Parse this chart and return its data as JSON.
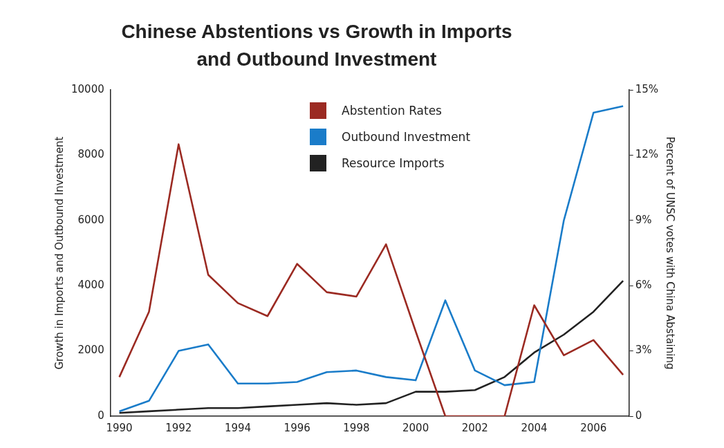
{
  "chart_data": {
    "type": "line",
    "title": "Chinese Abstentions vs Growth in Imports and Outbound Investment",
    "ylabel": "Growth in Imports and Outbound Investment",
    "y2label": "Percent of UNSC votes with China Abstaining",
    "x": [
      1990,
      1991,
      1992,
      1993,
      1994,
      1995,
      1996,
      1997,
      1998,
      1999,
      2000,
      2001,
      2002,
      2003,
      2004,
      2005,
      2006,
      2007
    ],
    "series": [
      {
        "name": "Abstention Rates",
        "color": "#9b2a22",
        "axis": "y2",
        "values": [
          1.8,
          4.8,
          12.5,
          6.5,
          5.2,
          4.6,
          7.0,
          5.7,
          5.5,
          7.9,
          3.9,
          0,
          0,
          0,
          5.1,
          2.8,
          3.5,
          1.9
        ]
      },
      {
        "name": "Outbound Investment",
        "color": "#1a7cc9",
        "values": [
          150,
          470,
          2000,
          2200,
          1000,
          1000,
          1050,
          1350,
          1400,
          1200,
          1100,
          3550,
          1400,
          950,
          1050,
          6000,
          9300,
          9500
        ]
      },
      {
        "name": "Resource Imports",
        "color": "#222222",
        "values": [
          100,
          150,
          200,
          250,
          250,
          300,
          350,
          400,
          350,
          400,
          750,
          750,
          800,
          1200,
          1950,
          2500,
          3200,
          4150
        ]
      }
    ],
    "xlim": [
      1989.7,
      2007.2
    ],
    "xticks": [
      1990,
      1992,
      1994,
      1996,
      1998,
      2000,
      2002,
      2004,
      2006
    ],
    "ylim": [
      0,
      10000
    ],
    "yticks": [
      0,
      2000,
      4000,
      6000,
      8000,
      10000
    ],
    "y2lim": [
      0,
      15
    ],
    "y2ticks": [
      0,
      {
        "value": 3,
        "label": "3%"
      },
      {
        "value": 6,
        "label": "6%"
      },
      {
        "value": 9,
        "label": "9%"
      },
      {
        "value": 12,
        "label": "12%"
      },
      {
        "value": 15,
        "label": "15%"
      }
    ],
    "grid": false,
    "legend": "top",
    "marker": "none",
    "line_style": "solid"
  }
}
